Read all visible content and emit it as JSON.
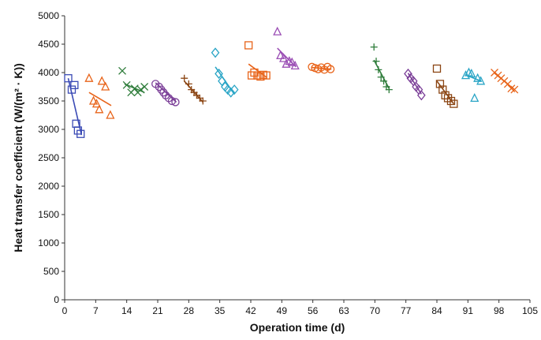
{
  "chart_data": {
    "type": "scatter",
    "title": "",
    "xlabel": "Operation time (d)",
    "ylabel": "Heat transfer coefficient (W/(m² · K))",
    "xlim": [
      0,
      105
    ],
    "ylim": [
      0,
      5000
    ],
    "xticks": [
      0,
      7,
      14,
      21,
      28,
      35,
      42,
      49,
      56,
      63,
      70,
      77,
      84,
      91,
      98,
      105
    ],
    "yticks": [
      0,
      500,
      1000,
      1500,
      2000,
      2500,
      3000,
      3500,
      4000,
      4500,
      5000
    ],
    "grid": false,
    "legend": "none",
    "series": [
      {
        "color": "#3b4bb5",
        "marker": "square",
        "points": [
          [
            0.8,
            3900
          ],
          [
            1.6,
            3700
          ],
          [
            2.2,
            3780
          ],
          [
            2.6,
            3100
          ],
          [
            3.0,
            2980
          ],
          [
            3.6,
            2920
          ]
        ],
        "trend": [
          [
            0.8,
            3900
          ],
          [
            3.8,
            2900
          ]
        ]
      },
      {
        "color": "#e8641a",
        "marker": "triangle",
        "points": [
          [
            5.5,
            3900
          ],
          [
            6.5,
            3500
          ],
          [
            7.2,
            3450
          ],
          [
            7.8,
            3350
          ],
          [
            8.4,
            3850
          ],
          [
            9.2,
            3750
          ],
          [
            10.3,
            3250
          ]
        ],
        "trend": [
          [
            5.5,
            3650
          ],
          [
            10.5,
            3420
          ]
        ]
      },
      {
        "color": "#2f7d3b",
        "marker": "x",
        "points": [
          [
            13.0,
            4030
          ],
          [
            14.0,
            3780
          ],
          [
            15.0,
            3650
          ],
          [
            15.8,
            3720
          ],
          [
            16.5,
            3650
          ],
          [
            17.2,
            3700
          ],
          [
            18.0,
            3750
          ]
        ],
        "trend": [
          [
            13.5,
            3800
          ],
          [
            18.0,
            3650
          ]
        ]
      },
      {
        "color": "#7b3f98",
        "marker": "circle",
        "points": [
          [
            20.5,
            3800
          ],
          [
            21.3,
            3750
          ],
          [
            21.8,
            3700
          ],
          [
            22.3,
            3650
          ],
          [
            22.8,
            3600
          ],
          [
            23.5,
            3550
          ],
          [
            24.2,
            3500
          ],
          [
            25.0,
            3480
          ]
        ],
        "trend": [
          [
            20.5,
            3820
          ],
          [
            25.2,
            3480
          ]
        ]
      },
      {
        "color": "#8b4513",
        "marker": "plus",
        "points": [
          [
            27.0,
            3900
          ],
          [
            28.0,
            3800
          ],
          [
            28.6,
            3700
          ],
          [
            29.2,
            3650
          ],
          [
            29.8,
            3600
          ],
          [
            30.5,
            3550
          ],
          [
            31.2,
            3500
          ]
        ],
        "trend": [
          [
            27.0,
            3850
          ],
          [
            31.2,
            3480
          ]
        ]
      },
      {
        "color": "#2aa5c6",
        "marker": "diamond",
        "points": [
          [
            34.0,
            4350
          ],
          [
            34.8,
            3980
          ],
          [
            35.5,
            3850
          ],
          [
            36.2,
            3750
          ],
          [
            36.8,
            3700
          ],
          [
            37.5,
            3650
          ],
          [
            38.3,
            3700
          ]
        ],
        "trend": [
          [
            34.0,
            4100
          ],
          [
            38.3,
            3620
          ]
        ]
      },
      {
        "color": "#e8641a",
        "marker": "square",
        "points": [
          [
            41.5,
            4480
          ],
          [
            42.2,
            3950
          ],
          [
            42.8,
            4000
          ],
          [
            43.5,
            3950
          ],
          [
            44.2,
            3930
          ],
          [
            44.8,
            3960
          ],
          [
            45.5,
            3950
          ]
        ],
        "trend": [
          [
            41.5,
            4150
          ],
          [
            45.5,
            3920
          ]
        ]
      },
      {
        "color": "#9b4fb5",
        "marker": "triangle",
        "points": [
          [
            48.0,
            4720
          ],
          [
            48.7,
            4300
          ],
          [
            49.4,
            4250
          ],
          [
            50.0,
            4150
          ],
          [
            50.7,
            4200
          ],
          [
            51.3,
            4180
          ],
          [
            52.0,
            4120
          ]
        ],
        "trend": [
          [
            48.0,
            4430
          ],
          [
            52.2,
            4100
          ]
        ]
      },
      {
        "color": "#e8641a",
        "marker": "circle",
        "points": [
          [
            55.8,
            4100
          ],
          [
            56.5,
            4080
          ],
          [
            57.2,
            4060
          ],
          [
            57.9,
            4090
          ],
          [
            58.6,
            4050
          ],
          [
            59.3,
            4100
          ],
          [
            60.0,
            4060
          ]
        ],
        "trend": [
          [
            55.8,
            4090
          ],
          [
            60.2,
            4060
          ]
        ]
      },
      {
        "color": "#2f7d3b",
        "marker": "plus",
        "points": [
          [
            69.8,
            4450
          ],
          [
            70.3,
            4200
          ],
          [
            70.8,
            4050
          ],
          [
            71.4,
            3920
          ],
          [
            72.0,
            3850
          ],
          [
            72.6,
            3750
          ],
          [
            73.2,
            3700
          ]
        ],
        "trend": [
          [
            69.8,
            4220
          ],
          [
            73.2,
            3720
          ]
        ]
      },
      {
        "color": "#7b3f98",
        "marker": "diamond",
        "points": [
          [
            77.5,
            3980
          ],
          [
            78.1,
            3900
          ],
          [
            78.7,
            3850
          ],
          [
            79.3,
            3750
          ],
          [
            79.9,
            3700
          ],
          [
            80.5,
            3600
          ]
        ],
        "trend": [
          [
            77.5,
            3990
          ],
          [
            80.5,
            3620
          ]
        ]
      },
      {
        "color": "#8b4513",
        "marker": "square",
        "points": [
          [
            84.0,
            4070
          ],
          [
            84.7,
            3800
          ],
          [
            85.3,
            3700
          ],
          [
            85.9,
            3600
          ],
          [
            86.5,
            3550
          ],
          [
            87.2,
            3500
          ],
          [
            87.8,
            3450
          ]
        ],
        "trend": [
          [
            84.0,
            3850
          ],
          [
            87.8,
            3450
          ]
        ]
      },
      {
        "color": "#2aa5c6",
        "marker": "triangle",
        "points": [
          [
            90.5,
            3950
          ],
          [
            91.2,
            4000
          ],
          [
            91.8,
            3980
          ],
          [
            92.5,
            3550
          ],
          [
            93.2,
            3900
          ],
          [
            93.9,
            3850
          ]
        ],
        "trend": [
          [
            90.5,
            3960
          ],
          [
            93.9,
            3850
          ]
        ]
      },
      {
        "color": "#e8641a",
        "marker": "x",
        "points": [
          [
            97.0,
            4000
          ],
          [
            97.8,
            3950
          ],
          [
            98.5,
            3900
          ],
          [
            99.2,
            3850
          ],
          [
            100.0,
            3800
          ],
          [
            100.8,
            3720
          ],
          [
            101.5,
            3700
          ]
        ],
        "trend": [
          [
            97.0,
            3990
          ],
          [
            101.5,
            3700
          ]
        ]
      }
    ]
  }
}
